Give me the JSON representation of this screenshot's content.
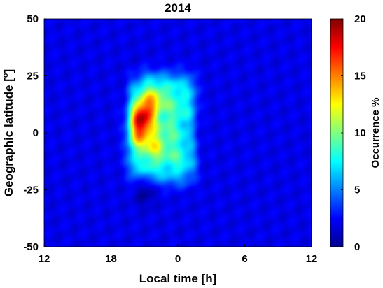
{
  "chart_data": {
    "type": "heatmap",
    "title": "2014",
    "xlabel": "Local time [h]",
    "ylabel": "Geographic latitude [",
    "ylabel_sup": "o",
    "ylabel_end": "]",
    "x_ticks": [
      "12",
      "18",
      "0",
      "6",
      "12"
    ],
    "x_range_hours_from_noon": [
      0,
      24
    ],
    "y_ticks": [
      50,
      25,
      0,
      -25,
      -50
    ],
    "ylim": [
      -50,
      50
    ],
    "colorbar": {
      "label": "Occurrence %",
      "ticks": [
        20,
        15,
        10,
        5,
        0
      ],
      "range": [
        0,
        20
      ],
      "colormap": "jet"
    },
    "background_level": 2,
    "features": [
      {
        "local_time": "20:30",
        "latitude": 7,
        "occurrence": 19.5
      },
      {
        "local_time": "20:30",
        "latitude": 0,
        "occurrence": 19
      },
      {
        "local_time": "21:15",
        "latitude": 10,
        "occurrence": 16
      },
      {
        "local_time": "22:00",
        "latitude": 15,
        "occurrence": 13
      },
      {
        "local_time": "22:00",
        "latitude": -5,
        "occurrence": 14
      },
      {
        "local_time": "19:30",
        "latitude": -10,
        "occurrence": 9
      },
      {
        "local_time": "23:30",
        "latitude": 10,
        "occurrence": 8
      },
      {
        "local_time": "01:00",
        "latitude": 0,
        "occurrence": 6
      },
      {
        "local_time": "20:00",
        "latitude": 25,
        "occurrence": 7
      },
      {
        "local_time": "21:00",
        "latitude": -25,
        "occurrence": 4
      }
    ]
  }
}
